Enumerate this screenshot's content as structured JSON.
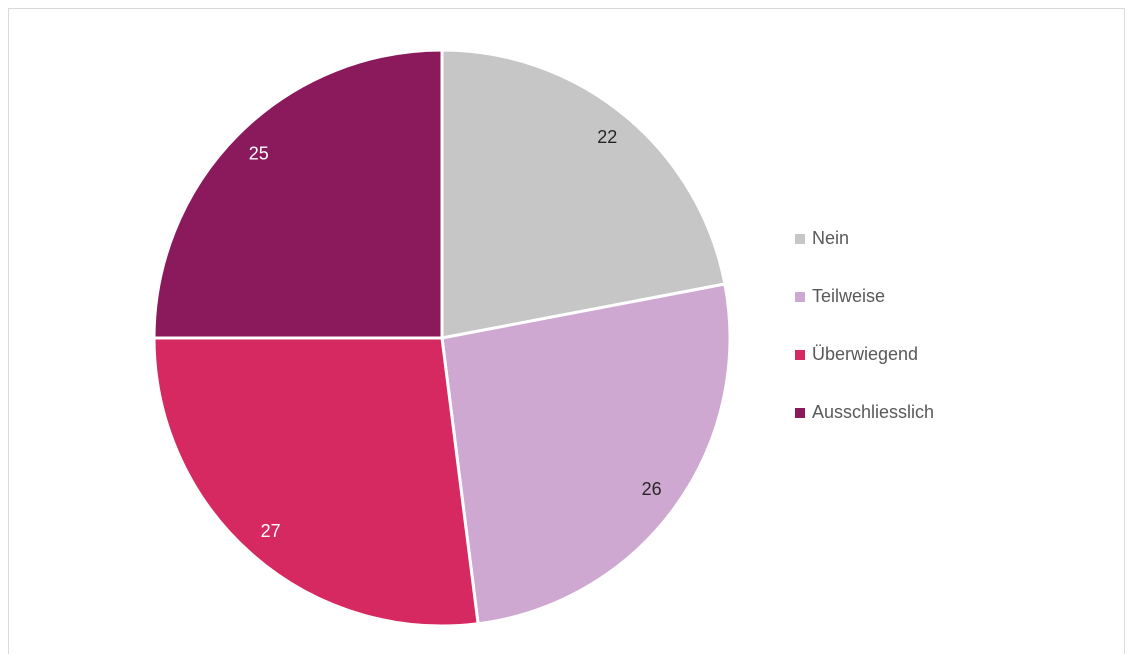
{
  "chart_data": {
    "type": "pie",
    "categories": [
      "Nein",
      "Teilweise",
      "Überwiegend",
      "Ausschliesslich"
    ],
    "values": [
      22,
      26,
      27,
      25
    ],
    "colors": [
      "#c6c6c6",
      "#cfa8d2",
      "#d62861",
      "#8b1a5c"
    ],
    "legend": "right"
  }
}
